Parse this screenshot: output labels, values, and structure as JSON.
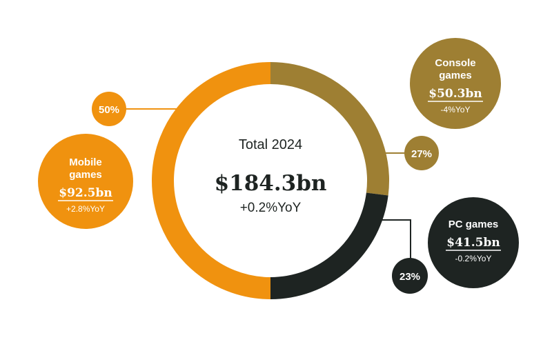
{
  "chart_data": {
    "type": "pie",
    "center_title": "Total 2024",
    "center_value": "$184.3bn",
    "center_change": "+0.2%YoY",
    "segments": [
      {
        "key": "console",
        "name_line1": "Console",
        "name_line2": "games",
        "value": 50.3,
        "value_label": "$50.3bn",
        "change": "-4%YoY",
        "share": 27,
        "share_label": "27%",
        "color": "#9E7F33"
      },
      {
        "key": "pc",
        "name_line1": "PC games",
        "name_line2": "",
        "value": 41.5,
        "value_label": "$41.5bn",
        "change": "-0.2%YoY",
        "share": 23,
        "share_label": "23%",
        "color": "#1E2422"
      },
      {
        "key": "mobile",
        "name_line1": "Mobile",
        "name_line2": "games",
        "value": 92.5,
        "value_label": "$92.5bn",
        "change": "+2.8%YoY",
        "share": 50,
        "share_label": "50%",
        "color": "#F0920F"
      }
    ]
  }
}
